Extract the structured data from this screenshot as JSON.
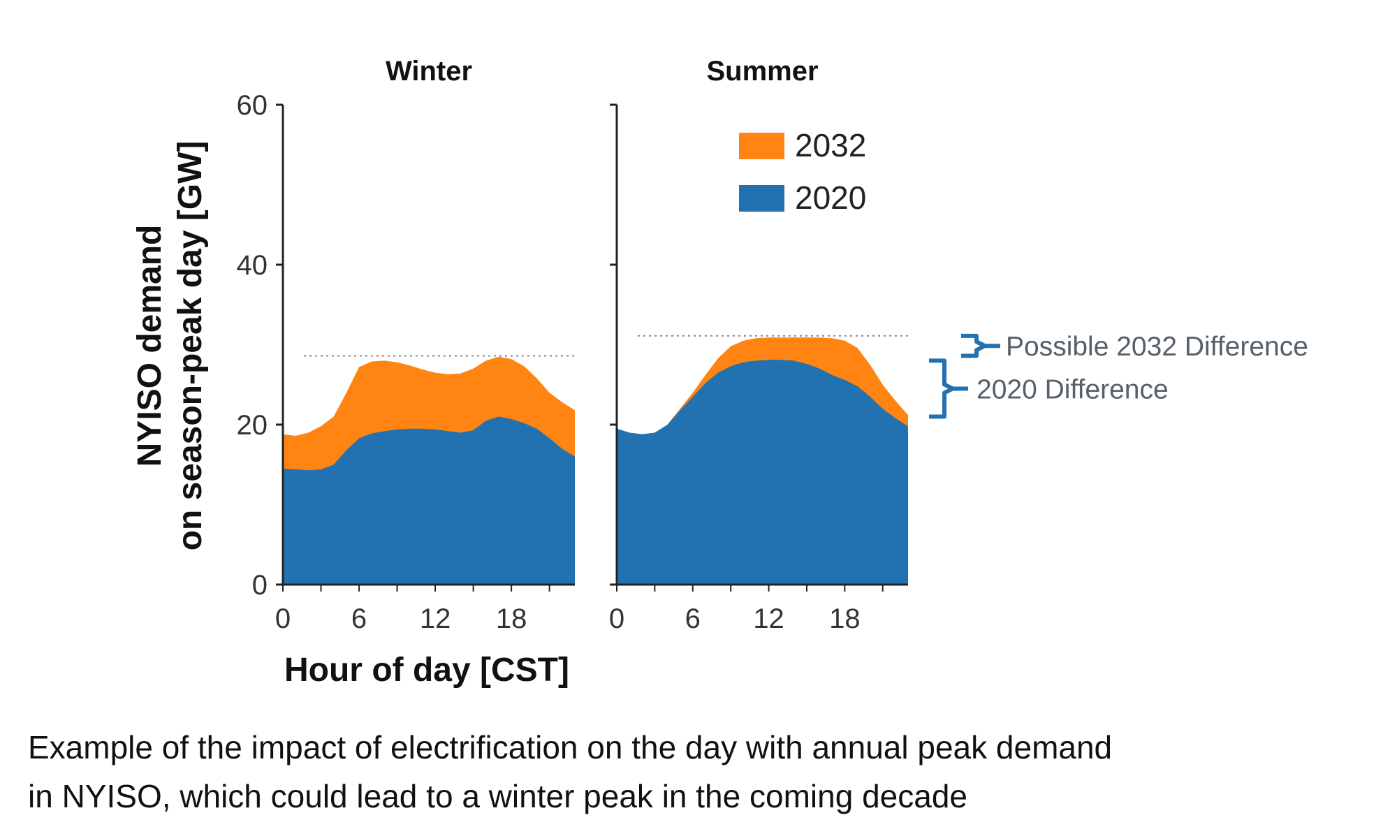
{
  "chart_data": {
    "type": "area",
    "stacked": false,
    "ylabel_lines": [
      "NYISO demand",
      "on season-peak day [GW]"
    ],
    "xlabel": "Hour of day [CST]",
    "ylim": [
      0,
      60
    ],
    "yticks": [
      0,
      20,
      40,
      60
    ],
    "xlim": [
      0,
      23
    ],
    "xticks": [
      0,
      6,
      12,
      18
    ],
    "legend": {
      "placement": "top-right of Summer panel",
      "entries": [
        {
          "name": "2032",
          "color": "#ff8412"
        },
        {
          "name": "2020",
          "color": "#2272b2"
        }
      ]
    },
    "panels": [
      {
        "title": "Winter",
        "x": [
          0,
          1,
          2,
          3,
          4,
          5,
          6,
          7,
          8,
          9,
          10,
          11,
          12,
          13,
          14,
          15,
          16,
          17,
          18,
          19,
          20,
          21,
          22,
          23
        ],
        "series": [
          {
            "name": "2032",
            "color": "#ff8412",
            "values": [
              18.8,
              18.6,
              19.0,
              19.8,
              21.0,
              24.0,
              27.2,
              27.9,
              28.0,
              27.8,
              27.4,
              26.9,
              26.5,
              26.3,
              26.4,
              27.0,
              28.0,
              28.5,
              28.2,
              27.3,
              25.8,
              24.0,
              22.8,
              21.8
            ]
          },
          {
            "name": "2020",
            "color": "#2272b2",
            "values": [
              14.5,
              14.4,
              14.3,
              14.4,
              15.0,
              16.8,
              18.3,
              18.9,
              19.2,
              19.4,
              19.5,
              19.5,
              19.4,
              19.2,
              19.0,
              19.3,
              20.5,
              21.0,
              20.7,
              20.2,
              19.5,
              18.3,
              17.0,
              16.0
            ]
          }
        ],
        "peak_line": 28.6
      },
      {
        "title": "Summer",
        "x": [
          0,
          1,
          2,
          3,
          4,
          5,
          6,
          7,
          8,
          9,
          10,
          11,
          12,
          13,
          14,
          15,
          16,
          17,
          18,
          19,
          20,
          21,
          22,
          23
        ],
        "series": [
          {
            "name": "2032",
            "color": "#ff8412",
            "values": [
              19.5,
              19.0,
              18.8,
              19.0,
              20.0,
              22.0,
              24.0,
              26.2,
              28.3,
              29.8,
              30.5,
              30.8,
              30.9,
              30.9,
              30.9,
              30.9,
              30.9,
              30.8,
              30.5,
              29.6,
              27.5,
              25.0,
              23.0,
              21.2
            ]
          },
          {
            "name": "2020",
            "color": "#2272b2",
            "values": [
              19.5,
              19.0,
              18.8,
              19.0,
              20.0,
              21.8,
              23.5,
              25.2,
              26.5,
              27.3,
              27.8,
              28.0,
              28.1,
              28.1,
              28.0,
              27.6,
              27.0,
              26.2,
              25.6,
              24.8,
              23.5,
              22.0,
              20.8,
              19.8
            ]
          }
        ],
        "peak_line": 31.1
      }
    ],
    "annotations": [
      {
        "text": "Possible 2032 Difference",
        "range": [
          28.6,
          31.1
        ]
      },
      {
        "text": "2020 Difference",
        "range": [
          21.0,
          28.0
        ]
      }
    ]
  },
  "caption_lines": [
    "Example of the impact of electrification on the day with annual  peak demand",
    "in NYISO, which could lead to a winter peak in the coming decade"
  ]
}
